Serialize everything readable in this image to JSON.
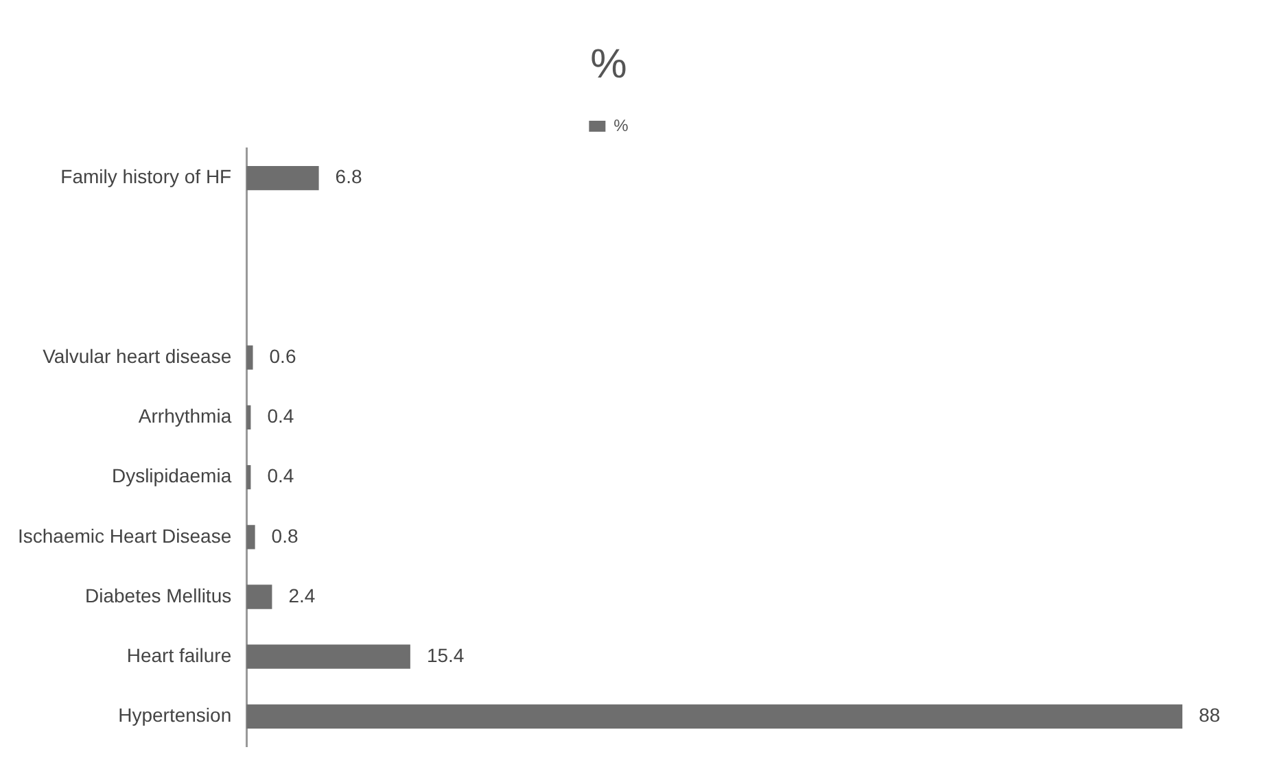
{
  "chart_data": {
    "type": "bar",
    "orientation": "horizontal",
    "title": "%",
    "categories": [
      "Family history of HF",
      null,
      null,
      "Valvular heart disease",
      "Arrhythmia",
      "Dyslipidaemia",
      "Ischaemic Heart Disease",
      "Diabetes Mellitus",
      "Heart failure",
      "Hypertension"
    ],
    "series": [
      {
        "name": "%",
        "color": "#6e6e6e",
        "values": [
          6.8,
          null,
          null,
          0.6,
          0.4,
          0.4,
          0.8,
          2.4,
          15.4,
          88
        ]
      }
    ],
    "data_labels": true,
    "legend": "top",
    "grid": false,
    "tick_labels": "y"
  }
}
